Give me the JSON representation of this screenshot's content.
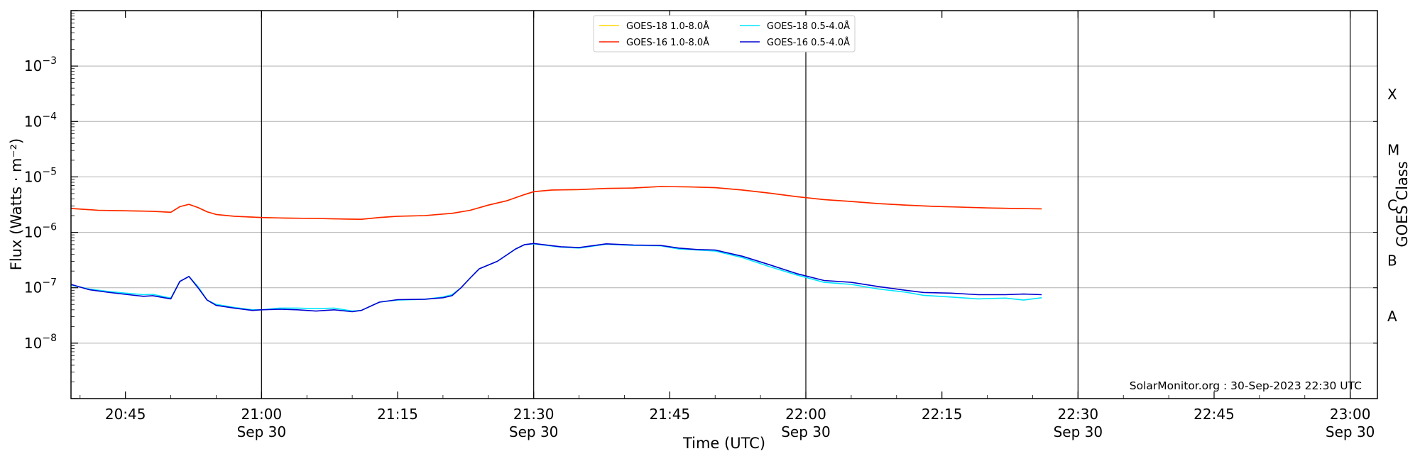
{
  "chart_data": {
    "type": "line",
    "xlabel": "Time (UTC)",
    "ylabel": "Flux (Watts · m⁻²)",
    "right_axis_label": "GOES Class",
    "yscale": "log",
    "ylim": [
      1e-09,
      0.01
    ],
    "xlim": [
      "2023-09-30 20:39",
      "2023-09-30 23:03"
    ],
    "grid": "horizontal at decades; vertical at half-hour marks",
    "legend_position": "top-center",
    "x_ticks": [
      {
        "time": "20:45",
        "date": ""
      },
      {
        "time": "21:00",
        "date": "Sep 30"
      },
      {
        "time": "21:15",
        "date": ""
      },
      {
        "time": "21:30",
        "date": "Sep 30"
      },
      {
        "time": "21:45",
        "date": ""
      },
      {
        "time": "22:00",
        "date": "Sep 30"
      },
      {
        "time": "22:15",
        "date": ""
      },
      {
        "time": "22:30",
        "date": "Sep 30"
      },
      {
        "time": "22:45",
        "date": ""
      },
      {
        "time": "23:00",
        "date": "Sep 30"
      }
    ],
    "y_ticks": [
      {
        "base": "10",
        "exp": "−8"
      },
      {
        "base": "10",
        "exp": "−7"
      },
      {
        "base": "10",
        "exp": "−6"
      },
      {
        "base": "10",
        "exp": "−5"
      },
      {
        "base": "10",
        "exp": "−4"
      },
      {
        "base": "10",
        "exp": "−3"
      }
    ],
    "goes_classes": [
      "A",
      "B",
      "C",
      "M",
      "X"
    ],
    "annotation": "SolarMonitor.org : 30-Sep-2023 22:30 UTC",
    "series": [
      {
        "name": "GOES-18 1.0-8.0Å",
        "color": "#FFD700",
        "points": [
          [
            "20:39",
            2.7e-06
          ],
          [
            "20:42",
            2.5e-06
          ],
          [
            "20:45",
            2.45e-06
          ],
          [
            "20:48",
            2.4e-06
          ],
          [
            "20:50",
            2.3e-06
          ],
          [
            "20:51",
            2.9e-06
          ],
          [
            "20:52",
            3.2e-06
          ],
          [
            "20:53",
            2.8e-06
          ],
          [
            "20:54",
            2.35e-06
          ],
          [
            "20:55",
            2.1e-06
          ],
          [
            "20:57",
            1.95e-06
          ],
          [
            "21:00",
            1.85e-06
          ],
          [
            "21:03",
            1.8e-06
          ],
          [
            "21:06",
            1.78e-06
          ],
          [
            "21:09",
            1.74e-06
          ],
          [
            "21:11",
            1.72e-06
          ],
          [
            "21:13",
            1.85e-06
          ],
          [
            "21:15",
            1.95e-06
          ],
          [
            "21:18",
            2e-06
          ],
          [
            "21:21",
            2.2e-06
          ],
          [
            "21:23",
            2.5e-06
          ],
          [
            "21:25",
            3.1e-06
          ],
          [
            "21:27",
            3.7e-06
          ],
          [
            "21:29",
            4.8e-06
          ],
          [
            "21:30",
            5.4e-06
          ],
          [
            "21:32",
            5.8e-06
          ],
          [
            "21:35",
            5.9e-06
          ],
          [
            "21:38",
            6.2e-06
          ],
          [
            "21:41",
            6.3e-06
          ],
          [
            "21:44",
            6.7e-06
          ],
          [
            "21:47",
            6.6e-06
          ],
          [
            "21:50",
            6.4e-06
          ],
          [
            "21:53",
            5.8e-06
          ],
          [
            "21:56",
            5.1e-06
          ],
          [
            "21:59",
            4.4e-06
          ],
          [
            "22:02",
            3.9e-06
          ],
          [
            "22:05",
            3.6e-06
          ],
          [
            "22:08",
            3.3e-06
          ],
          [
            "22:11",
            3.1e-06
          ],
          [
            "22:14",
            2.95e-06
          ],
          [
            "22:17",
            2.85e-06
          ],
          [
            "22:20",
            2.75e-06
          ],
          [
            "22:23",
            2.7e-06
          ],
          [
            "22:26",
            2.65e-06
          ]
        ]
      },
      {
        "name": "GOES-16 1.0-8.0Å",
        "color": "#FF2000",
        "points": [
          [
            "20:39",
            2.7e-06
          ],
          [
            "20:42",
            2.5e-06
          ],
          [
            "20:45",
            2.45e-06
          ],
          [
            "20:48",
            2.4e-06
          ],
          [
            "20:50",
            2.3e-06
          ],
          [
            "20:51",
            2.9e-06
          ],
          [
            "20:52",
            3.2e-06
          ],
          [
            "20:53",
            2.8e-06
          ],
          [
            "20:54",
            2.35e-06
          ],
          [
            "20:55",
            2.1e-06
          ],
          [
            "20:57",
            1.95e-06
          ],
          [
            "21:00",
            1.85e-06
          ],
          [
            "21:03",
            1.8e-06
          ],
          [
            "21:06",
            1.78e-06
          ],
          [
            "21:09",
            1.74e-06
          ],
          [
            "21:11",
            1.72e-06
          ],
          [
            "21:13",
            1.85e-06
          ],
          [
            "21:15",
            1.95e-06
          ],
          [
            "21:18",
            2e-06
          ],
          [
            "21:21",
            2.2e-06
          ],
          [
            "21:23",
            2.5e-06
          ],
          [
            "21:25",
            3.1e-06
          ],
          [
            "21:27",
            3.7e-06
          ],
          [
            "21:29",
            4.8e-06
          ],
          [
            "21:30",
            5.4e-06
          ],
          [
            "21:32",
            5.8e-06
          ],
          [
            "21:35",
            5.9e-06
          ],
          [
            "21:38",
            6.2e-06
          ],
          [
            "21:41",
            6.3e-06
          ],
          [
            "21:44",
            6.7e-06
          ],
          [
            "21:47",
            6.6e-06
          ],
          [
            "21:50",
            6.4e-06
          ],
          [
            "21:53",
            5.8e-06
          ],
          [
            "21:56",
            5.1e-06
          ],
          [
            "21:59",
            4.4e-06
          ],
          [
            "22:02",
            3.9e-06
          ],
          [
            "22:05",
            3.6e-06
          ],
          [
            "22:08",
            3.3e-06
          ],
          [
            "22:11",
            3.1e-06
          ],
          [
            "22:14",
            2.95e-06
          ],
          [
            "22:17",
            2.85e-06
          ],
          [
            "22:20",
            2.75e-06
          ],
          [
            "22:23",
            2.7e-06
          ],
          [
            "22:26",
            2.65e-06
          ]
        ]
      },
      {
        "name": "GOES-18 0.5-4.0Å",
        "color": "#00E5FF",
        "points": [
          [
            "20:39",
            1.12e-07
          ],
          [
            "20:41",
            9.5e-08
          ],
          [
            "20:43",
            8.6e-08
          ],
          [
            "20:45",
            8e-08
          ],
          [
            "20:47",
            7.5e-08
          ],
          [
            "20:48",
            7.6e-08
          ],
          [
            "20:50",
            6.5e-08
          ],
          [
            "20:51",
            1.3e-07
          ],
          [
            "20:52",
            1.6e-07
          ],
          [
            "20:53",
            1.05e-07
          ],
          [
            "20:54",
            6e-08
          ],
          [
            "20:55",
            5e-08
          ],
          [
            "20:57",
            4.4e-08
          ],
          [
            "20:59",
            4e-08
          ],
          [
            "21:00",
            4e-08
          ],
          [
            "21:02",
            4.3e-08
          ],
          [
            "21:04",
            4.3e-08
          ],
          [
            "21:06",
            4.2e-08
          ],
          [
            "21:08",
            4.3e-08
          ],
          [
            "21:10",
            3.8e-08
          ],
          [
            "21:11",
            3.9e-08
          ],
          [
            "21:13",
            5.5e-08
          ],
          [
            "21:15",
            6e-08
          ],
          [
            "21:18",
            6.2e-08
          ],
          [
            "21:20",
            6.8e-08
          ],
          [
            "21:21",
            7.5e-08
          ],
          [
            "21:22",
            1e-07
          ],
          [
            "21:23",
            1.5e-07
          ],
          [
            "21:24",
            2.2e-07
          ],
          [
            "21:26",
            3e-07
          ],
          [
            "21:28",
            5e-07
          ],
          [
            "21:29",
            6e-07
          ],
          [
            "21:30",
            6.2e-07
          ],
          [
            "21:33",
            5.4e-07
          ],
          [
            "21:35",
            5.2e-07
          ],
          [
            "21:38",
            6.1e-07
          ],
          [
            "21:41",
            5.8e-07
          ],
          [
            "21:44",
            5.7e-07
          ],
          [
            "21:46",
            5e-07
          ],
          [
            "21:48",
            4.8e-07
          ],
          [
            "21:50",
            4.6e-07
          ],
          [
            "21:53",
            3.5e-07
          ],
          [
            "21:56",
            2.4e-07
          ],
          [
            "21:59",
            1.7e-07
          ],
          [
            "22:02",
            1.25e-07
          ],
          [
            "22:05",
            1.15e-07
          ],
          [
            "22:08",
            9.5e-08
          ],
          [
            "22:11",
            8.3e-08
          ],
          [
            "22:13",
            7.3e-08
          ],
          [
            "22:16",
            6.8e-08
          ],
          [
            "22:19",
            6.3e-08
          ],
          [
            "22:22",
            6.5e-08
          ],
          [
            "22:24",
            6e-08
          ],
          [
            "22:26",
            6.6e-08
          ]
        ]
      },
      {
        "name": "GOES-16 0.5-4.0Å",
        "color": "#0000D0",
        "points": [
          [
            "20:39",
            1.15e-07
          ],
          [
            "20:41",
            9.2e-08
          ],
          [
            "20:43",
            8.3e-08
          ],
          [
            "20:45",
            7.6e-08
          ],
          [
            "20:47",
            7e-08
          ],
          [
            "20:48",
            7.2e-08
          ],
          [
            "20:50",
            6.3e-08
          ],
          [
            "20:51",
            1.3e-07
          ],
          [
            "20:52",
            1.6e-07
          ],
          [
            "20:53",
            1e-07
          ],
          [
            "20:54",
            6e-08
          ],
          [
            "20:55",
            4.8e-08
          ],
          [
            "20:57",
            4.3e-08
          ],
          [
            "20:59",
            3.9e-08
          ],
          [
            "21:00",
            4e-08
          ],
          [
            "21:02",
            4.1e-08
          ],
          [
            "21:04",
            4e-08
          ],
          [
            "21:06",
            3.8e-08
          ],
          [
            "21:08",
            4e-08
          ],
          [
            "21:10",
            3.7e-08
          ],
          [
            "21:11",
            3.9e-08
          ],
          [
            "21:13",
            5.5e-08
          ],
          [
            "21:15",
            6.1e-08
          ],
          [
            "21:18",
            6.2e-08
          ],
          [
            "21:20",
            6.6e-08
          ],
          [
            "21:21",
            7.2e-08
          ],
          [
            "21:22",
            1e-07
          ],
          [
            "21:23",
            1.5e-07
          ],
          [
            "21:24",
            2.2e-07
          ],
          [
            "21:26",
            3e-07
          ],
          [
            "21:28",
            5e-07
          ],
          [
            "21:29",
            6e-07
          ],
          [
            "21:30",
            6.3e-07
          ],
          [
            "21:33",
            5.5e-07
          ],
          [
            "21:35",
            5.3e-07
          ],
          [
            "21:38",
            6.2e-07
          ],
          [
            "21:41",
            5.9e-07
          ],
          [
            "21:44",
            5.8e-07
          ],
          [
            "21:46",
            5.2e-07
          ],
          [
            "21:48",
            4.9e-07
          ],
          [
            "21:50",
            4.8e-07
          ],
          [
            "21:53",
            3.7e-07
          ],
          [
            "21:56",
            2.6e-07
          ],
          [
            "21:59",
            1.8e-07
          ],
          [
            "22:02",
            1.35e-07
          ],
          [
            "22:05",
            1.25e-07
          ],
          [
            "22:08",
            1.05e-07
          ],
          [
            "22:11",
            9e-08
          ],
          [
            "22:13",
            8.2e-08
          ],
          [
            "22:16",
            8e-08
          ],
          [
            "22:19",
            7.5e-08
          ],
          [
            "22:22",
            7.5e-08
          ],
          [
            "22:24",
            7.7e-08
          ],
          [
            "22:26",
            7.5e-08
          ]
        ]
      }
    ]
  }
}
